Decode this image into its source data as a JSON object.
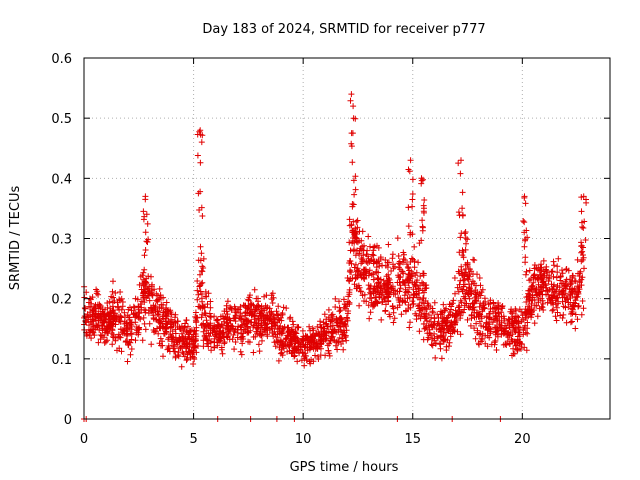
{
  "chart_data": {
    "type": "scatter",
    "title": "Day 183 of 2024, SRMTID for receiver p777",
    "xlabel": "GPS time / hours",
    "ylabel": "SRMTID / TECUs",
    "xlim": [
      0,
      24
    ],
    "ylim": [
      0,
      0.6
    ],
    "x_ticks": [
      0,
      5,
      10,
      15,
      20
    ],
    "y_ticks": [
      0,
      0.1,
      0.2,
      0.3,
      0.4,
      0.5,
      0.6
    ],
    "x_tick_labels": [
      "0",
      "5",
      "10",
      "15",
      "20"
    ],
    "y_tick_labels": [
      "0",
      "0.1",
      "0.2",
      "0.3",
      "0.4",
      "0.5",
      "0.6"
    ],
    "grid": true,
    "marker": "plus",
    "series_color": "#e00000",
    "series": [
      {
        "name": "SRMTID",
        "profile_x": [
          0,
          0.5,
          1,
          1.5,
          2,
          2.5,
          2.8,
          3.2,
          3.8,
          4.5,
          5,
          5.3,
          5.6,
          6,
          6.5,
          7,
          7.5,
          8,
          8.5,
          9,
          9.5,
          10,
          10.5,
          11,
          11.5,
          12,
          12.3,
          12.7,
          13,
          13.5,
          14,
          14.5,
          15,
          15.5,
          16,
          16.5,
          17,
          17.3,
          17.7,
          18,
          18.5,
          19,
          19.5,
          20,
          20.5,
          21,
          21.5,
          22,
          22.5,
          22.8
        ],
        "profile_center": [
          0.18,
          0.17,
          0.16,
          0.17,
          0.15,
          0.17,
          0.22,
          0.18,
          0.15,
          0.13,
          0.12,
          0.22,
          0.16,
          0.14,
          0.16,
          0.15,
          0.17,
          0.16,
          0.17,
          0.14,
          0.13,
          0.12,
          0.13,
          0.14,
          0.15,
          0.17,
          0.3,
          0.26,
          0.24,
          0.22,
          0.21,
          0.23,
          0.22,
          0.2,
          0.14,
          0.15,
          0.17,
          0.24,
          0.2,
          0.18,
          0.16,
          0.16,
          0.15,
          0.14,
          0.22,
          0.22,
          0.21,
          0.21,
          0.2,
          0.26
        ],
        "profile_spread": [
          0.06,
          0.05,
          0.05,
          0.06,
          0.05,
          0.06,
          0.09,
          0.06,
          0.05,
          0.05,
          0.04,
          0.12,
          0.06,
          0.05,
          0.05,
          0.05,
          0.06,
          0.05,
          0.05,
          0.05,
          0.04,
          0.04,
          0.04,
          0.04,
          0.05,
          0.06,
          0.11,
          0.08,
          0.08,
          0.07,
          0.07,
          0.08,
          0.09,
          0.08,
          0.05,
          0.05,
          0.06,
          0.1,
          0.08,
          0.07,
          0.06,
          0.06,
          0.06,
          0.06,
          0.07,
          0.07,
          0.07,
          0.07,
          0.07,
          0.08
        ],
        "approx_point_count": 2600,
        "peaks": [
          {
            "x": 2.8,
            "y": 0.37
          },
          {
            "x": 5.3,
            "y": 0.48
          },
          {
            "x": 12.2,
            "y": 0.54
          },
          {
            "x": 12.3,
            "y": 0.5
          },
          {
            "x": 14.9,
            "y": 0.43
          },
          {
            "x": 17.2,
            "y": 0.43
          },
          {
            "x": 15.4,
            "y": 0.4
          },
          {
            "x": 20.1,
            "y": 0.37
          },
          {
            "x": 22.8,
            "y": 0.37
          }
        ],
        "zero_points_x": [
          0,
          0.1,
          6.1,
          7.6,
          8.8,
          9.6,
          14.3,
          16.8,
          19.0
        ]
      }
    ]
  }
}
